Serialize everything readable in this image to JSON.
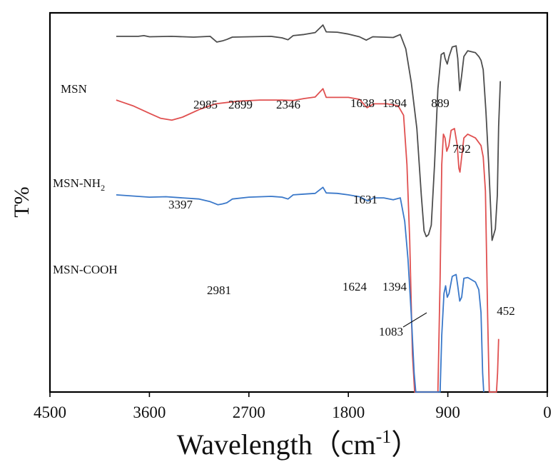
{
  "chart_data": {
    "type": "line",
    "xlabel": "Wavelength（cm",
    "xlabel_sup": "-1",
    "xlabel_close": "）",
    "ylabel": "T%",
    "xlim": [
      4500,
      0
    ],
    "x_reversed": true,
    "xticks": [
      4500,
      3600,
      2700,
      1800,
      900,
      0
    ],
    "yticks_shown": false,
    "grid": false,
    "series": [
      {
        "name": "MSN",
        "label_text": "MSN",
        "color": "#4d4d4d",
        "points": [
          [
            3900,
            6.2
          ],
          [
            3700,
            6.2
          ],
          [
            3650,
            6.0
          ],
          [
            3600,
            6.3
          ],
          [
            3400,
            6.2
          ],
          [
            3200,
            6.4
          ],
          [
            3050,
            6.2
          ],
          [
            2990,
            7.7
          ],
          [
            2940,
            7.4
          ],
          [
            2899,
            7.0
          ],
          [
            2850,
            6.4
          ],
          [
            2700,
            6.3
          ],
          [
            2500,
            6.2
          ],
          [
            2400,
            6.6
          ],
          [
            2346,
            7.1
          ],
          [
            2300,
            6.0
          ],
          [
            2200,
            5.7
          ],
          [
            2100,
            5.2
          ],
          [
            2030,
            3.2
          ],
          [
            2000,
            5.0
          ],
          [
            1900,
            5.1
          ],
          [
            1800,
            5.6
          ],
          [
            1700,
            6.3
          ],
          [
            1638,
            7.2
          ],
          [
            1580,
            6.3
          ],
          [
            1480,
            6.4
          ],
          [
            1394,
            6.5
          ],
          [
            1330,
            5.7
          ],
          [
            1280,
            9.5
          ],
          [
            1230,
            18.5
          ],
          [
            1180,
            30.5
          ],
          [
            1140,
            48.0
          ],
          [
            1115,
            57.5
          ],
          [
            1095,
            59.0
          ],
          [
            1075,
            58.5
          ],
          [
            1050,
            56.0
          ],
          [
            1020,
            40.0
          ],
          [
            990,
            20.0
          ],
          [
            960,
            11.0
          ],
          [
            935,
            10.5
          ],
          [
            925,
            12.0
          ],
          [
            905,
            13.5
          ],
          [
            889,
            11.5
          ],
          [
            860,
            9.0
          ],
          [
            825,
            8.7
          ],
          [
            810,
            12.0
          ],
          [
            792,
            20.5
          ],
          [
            775,
            16.5
          ],
          [
            755,
            11.5
          ],
          [
            720,
            10.0
          ],
          [
            650,
            10.5
          ],
          [
            620,
            11.5
          ],
          [
            600,
            12.5
          ],
          [
            580,
            15.0
          ],
          [
            555,
            26.0
          ],
          [
            530,
            40.0
          ],
          [
            500,
            60.0
          ],
          [
            470,
            57.0
          ],
          [
            452,
            48.0
          ],
          [
            440,
            30.0
          ],
          [
            425,
            18.0
          ]
        ]
      },
      {
        "name": "MSN-NH2",
        "label_text": "MSN-NH",
        "label_sub": "2",
        "color": "#e05050",
        "points": [
          [
            3900,
            23.0
          ],
          [
            3850,
            23.5
          ],
          [
            3750,
            24.5
          ],
          [
            3600,
            26.5
          ],
          [
            3500,
            27.8
          ],
          [
            3397,
            28.3
          ],
          [
            3300,
            27.5
          ],
          [
            3150,
            25.5
          ],
          [
            3000,
            24.0
          ],
          [
            2800,
            23.3
          ],
          [
            2600,
            23.0
          ],
          [
            2400,
            23.0
          ],
          [
            2300,
            23.1
          ],
          [
            2200,
            22.6
          ],
          [
            2100,
            22.2
          ],
          [
            2030,
            20.0
          ],
          [
            2000,
            22.3
          ],
          [
            1800,
            22.3
          ],
          [
            1700,
            22.8
          ],
          [
            1631,
            25.0
          ],
          [
            1570,
            24.0
          ],
          [
            1450,
            24.0
          ],
          [
            1350,
            24.5
          ],
          [
            1300,
            27.0
          ],
          [
            1270,
            40.0
          ],
          [
            1245,
            60.0
          ],
          [
            1220,
            90.0
          ],
          [
            1200,
            100.0
          ],
          [
            1170,
            100.0
          ],
          [
            990,
            100.0
          ],
          [
            970,
            70.0
          ],
          [
            955,
            40.0
          ],
          [
            940,
            32.0
          ],
          [
            925,
            33.0
          ],
          [
            910,
            36.5
          ],
          [
            890,
            35.0
          ],
          [
            870,
            31.0
          ],
          [
            840,
            30.5
          ],
          [
            815,
            35.0
          ],
          [
            800,
            41.0
          ],
          [
            790,
            42.0
          ],
          [
            775,
            38.0
          ],
          [
            755,
            33.0
          ],
          [
            720,
            32.0
          ],
          [
            650,
            33.0
          ],
          [
            600,
            35.0
          ],
          [
            580,
            38.0
          ],
          [
            560,
            47.0
          ],
          [
            540,
            80.0
          ],
          [
            525,
            100.0
          ],
          [
            460,
            100.0
          ],
          [
            450,
            95.0
          ],
          [
            440,
            86.0
          ]
        ]
      },
      {
        "name": "MSN-COOH",
        "label_text": "MSN-COOH",
        "color": "#3a78c9",
        "points": [
          [
            3900,
            48.0
          ],
          [
            3750,
            48.3
          ],
          [
            3600,
            48.6
          ],
          [
            3450,
            48.5
          ],
          [
            3300,
            48.8
          ],
          [
            3150,
            49.1
          ],
          [
            3050,
            49.8
          ],
          [
            2981,
            50.6
          ],
          [
            2940,
            50.4
          ],
          [
            2900,
            50.1
          ],
          [
            2850,
            49.1
          ],
          [
            2700,
            48.6
          ],
          [
            2500,
            48.4
          ],
          [
            2400,
            48.6
          ],
          [
            2346,
            49.1
          ],
          [
            2300,
            48.0
          ],
          [
            2200,
            47.8
          ],
          [
            2100,
            47.6
          ],
          [
            2030,
            46.0
          ],
          [
            2000,
            47.5
          ],
          [
            1900,
            47.6
          ],
          [
            1800,
            48.0
          ],
          [
            1700,
            48.5
          ],
          [
            1624,
            49.6
          ],
          [
            1570,
            48.8
          ],
          [
            1480,
            48.8
          ],
          [
            1394,
            49.3
          ],
          [
            1330,
            48.8
          ],
          [
            1290,
            55.0
          ],
          [
            1260,
            65.0
          ],
          [
            1230,
            80.0
          ],
          [
            1205,
            95.0
          ],
          [
            1190,
            100.0
          ],
          [
            970,
            100.0
          ],
          [
            955,
            85.0
          ],
          [
            935,
            74.0
          ],
          [
            920,
            72.0
          ],
          [
            905,
            75.0
          ],
          [
            889,
            74.0
          ],
          [
            860,
            69.5
          ],
          [
            825,
            69.0
          ],
          [
            810,
            72.0
          ],
          [
            792,
            76.0
          ],
          [
            775,
            75.0
          ],
          [
            755,
            70.0
          ],
          [
            720,
            69.8
          ],
          [
            650,
            71.0
          ],
          [
            620,
            73.0
          ],
          [
            600,
            79.0
          ],
          [
            585,
            95.0
          ],
          [
            575,
            100.0
          ]
        ]
      }
    ],
    "annotations": [
      {
        "text": "2985",
        "series": "MSN"
      },
      {
        "text": "2899",
        "series": "MSN"
      },
      {
        "text": "2346",
        "series": "MSN"
      },
      {
        "text": "1638",
        "series": "MSN"
      },
      {
        "text": "1394",
        "series": "MSN"
      },
      {
        "text": "889",
        "series": "MSN"
      },
      {
        "text": "792",
        "series": "MSN"
      },
      {
        "text": "452",
        "series": "MSN"
      },
      {
        "text": "1083",
        "series": "MSN"
      },
      {
        "text": "3397",
        "series": "MSN-NH2"
      },
      {
        "text": "1631",
        "series": "MSN-NH2"
      },
      {
        "text": "2981",
        "series": "MSN-COOH"
      },
      {
        "text": "1624",
        "series": "MSN-COOH"
      },
      {
        "text": "1394",
        "series": "MSN-COOH"
      }
    ]
  }
}
